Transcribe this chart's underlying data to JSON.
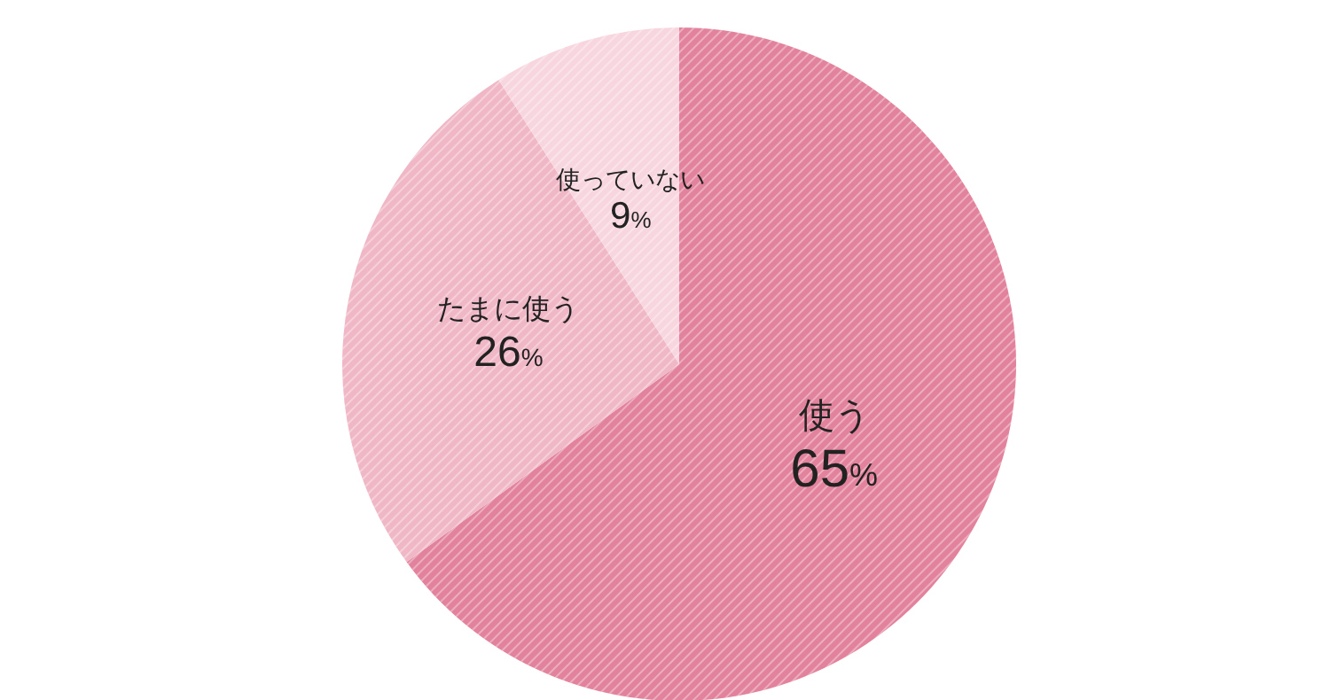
{
  "chart_data": {
    "type": "pie",
    "categories": [
      "使う",
      "たまに使う",
      "使っていない"
    ],
    "values": [
      65,
      26,
      9
    ],
    "colors": [
      "#e2829c",
      "#f0b7c6",
      "#f7d6df"
    ],
    "value_labels": [
      "65%",
      "26%",
      "9%"
    ]
  }
}
